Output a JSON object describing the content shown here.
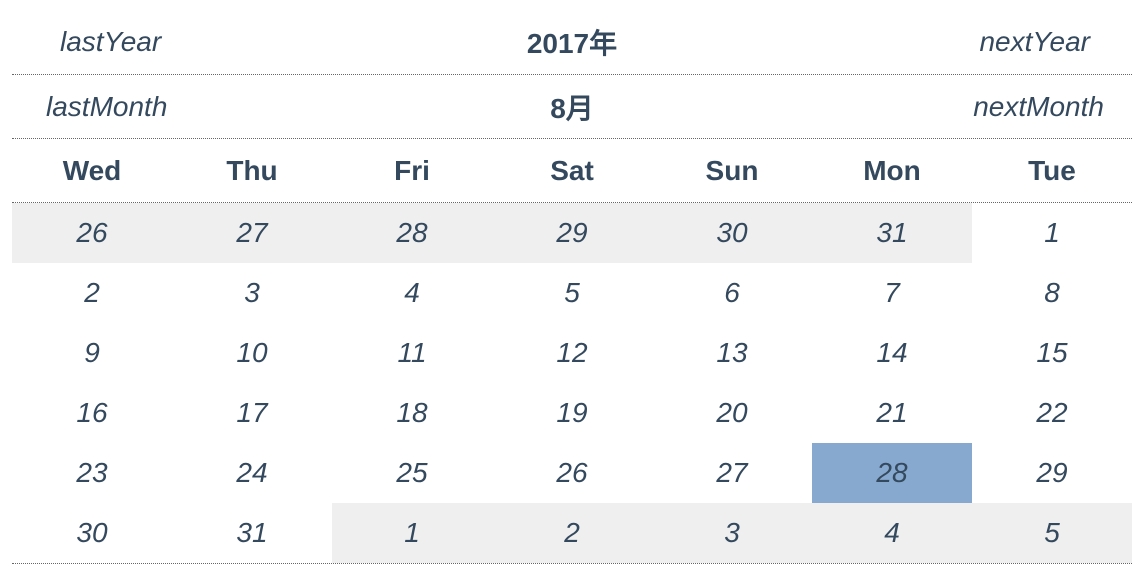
{
  "year_nav": {
    "prev": "lastYear",
    "title": "2017年",
    "next": "nextYear"
  },
  "month_nav": {
    "prev": "lastMonth",
    "title": "8月",
    "next": "nextMonth"
  },
  "weekdays": [
    "Wed",
    "Thu",
    "Fri",
    "Sat",
    "Sun",
    "Mon",
    "Tue"
  ],
  "colors": {
    "text": "#34495e",
    "other_month_bg": "#efefef",
    "selected_bg": "#87a9cf"
  },
  "days": [
    {
      "label": "26",
      "other": true
    },
    {
      "label": "27",
      "other": true
    },
    {
      "label": "28",
      "other": true
    },
    {
      "label": "29",
      "other": true
    },
    {
      "label": "30",
      "other": true
    },
    {
      "label": "31",
      "other": true
    },
    {
      "label": "1",
      "other": false
    },
    {
      "label": "2",
      "other": false
    },
    {
      "label": "3",
      "other": false
    },
    {
      "label": "4",
      "other": false
    },
    {
      "label": "5",
      "other": false
    },
    {
      "label": "6",
      "other": false
    },
    {
      "label": "7",
      "other": false
    },
    {
      "label": "8",
      "other": false
    },
    {
      "label": "9",
      "other": false
    },
    {
      "label": "10",
      "other": false
    },
    {
      "label": "11",
      "other": false
    },
    {
      "label": "12",
      "other": false
    },
    {
      "label": "13",
      "other": false
    },
    {
      "label": "14",
      "other": false
    },
    {
      "label": "15",
      "other": false
    },
    {
      "label": "16",
      "other": false
    },
    {
      "label": "17",
      "other": false
    },
    {
      "label": "18",
      "other": false
    },
    {
      "label": "19",
      "other": false
    },
    {
      "label": "20",
      "other": false
    },
    {
      "label": "21",
      "other": false
    },
    {
      "label": "22",
      "other": false
    },
    {
      "label": "23",
      "other": false
    },
    {
      "label": "24",
      "other": false
    },
    {
      "label": "25",
      "other": false
    },
    {
      "label": "26",
      "other": false
    },
    {
      "label": "27",
      "other": false
    },
    {
      "label": "28",
      "other": false,
      "selected": true
    },
    {
      "label": "29",
      "other": false
    },
    {
      "label": "30",
      "other": false
    },
    {
      "label": "31",
      "other": false
    },
    {
      "label": "1",
      "other": true
    },
    {
      "label": "2",
      "other": true
    },
    {
      "label": "3",
      "other": true
    },
    {
      "label": "4",
      "other": true
    },
    {
      "label": "5",
      "other": true
    }
  ]
}
